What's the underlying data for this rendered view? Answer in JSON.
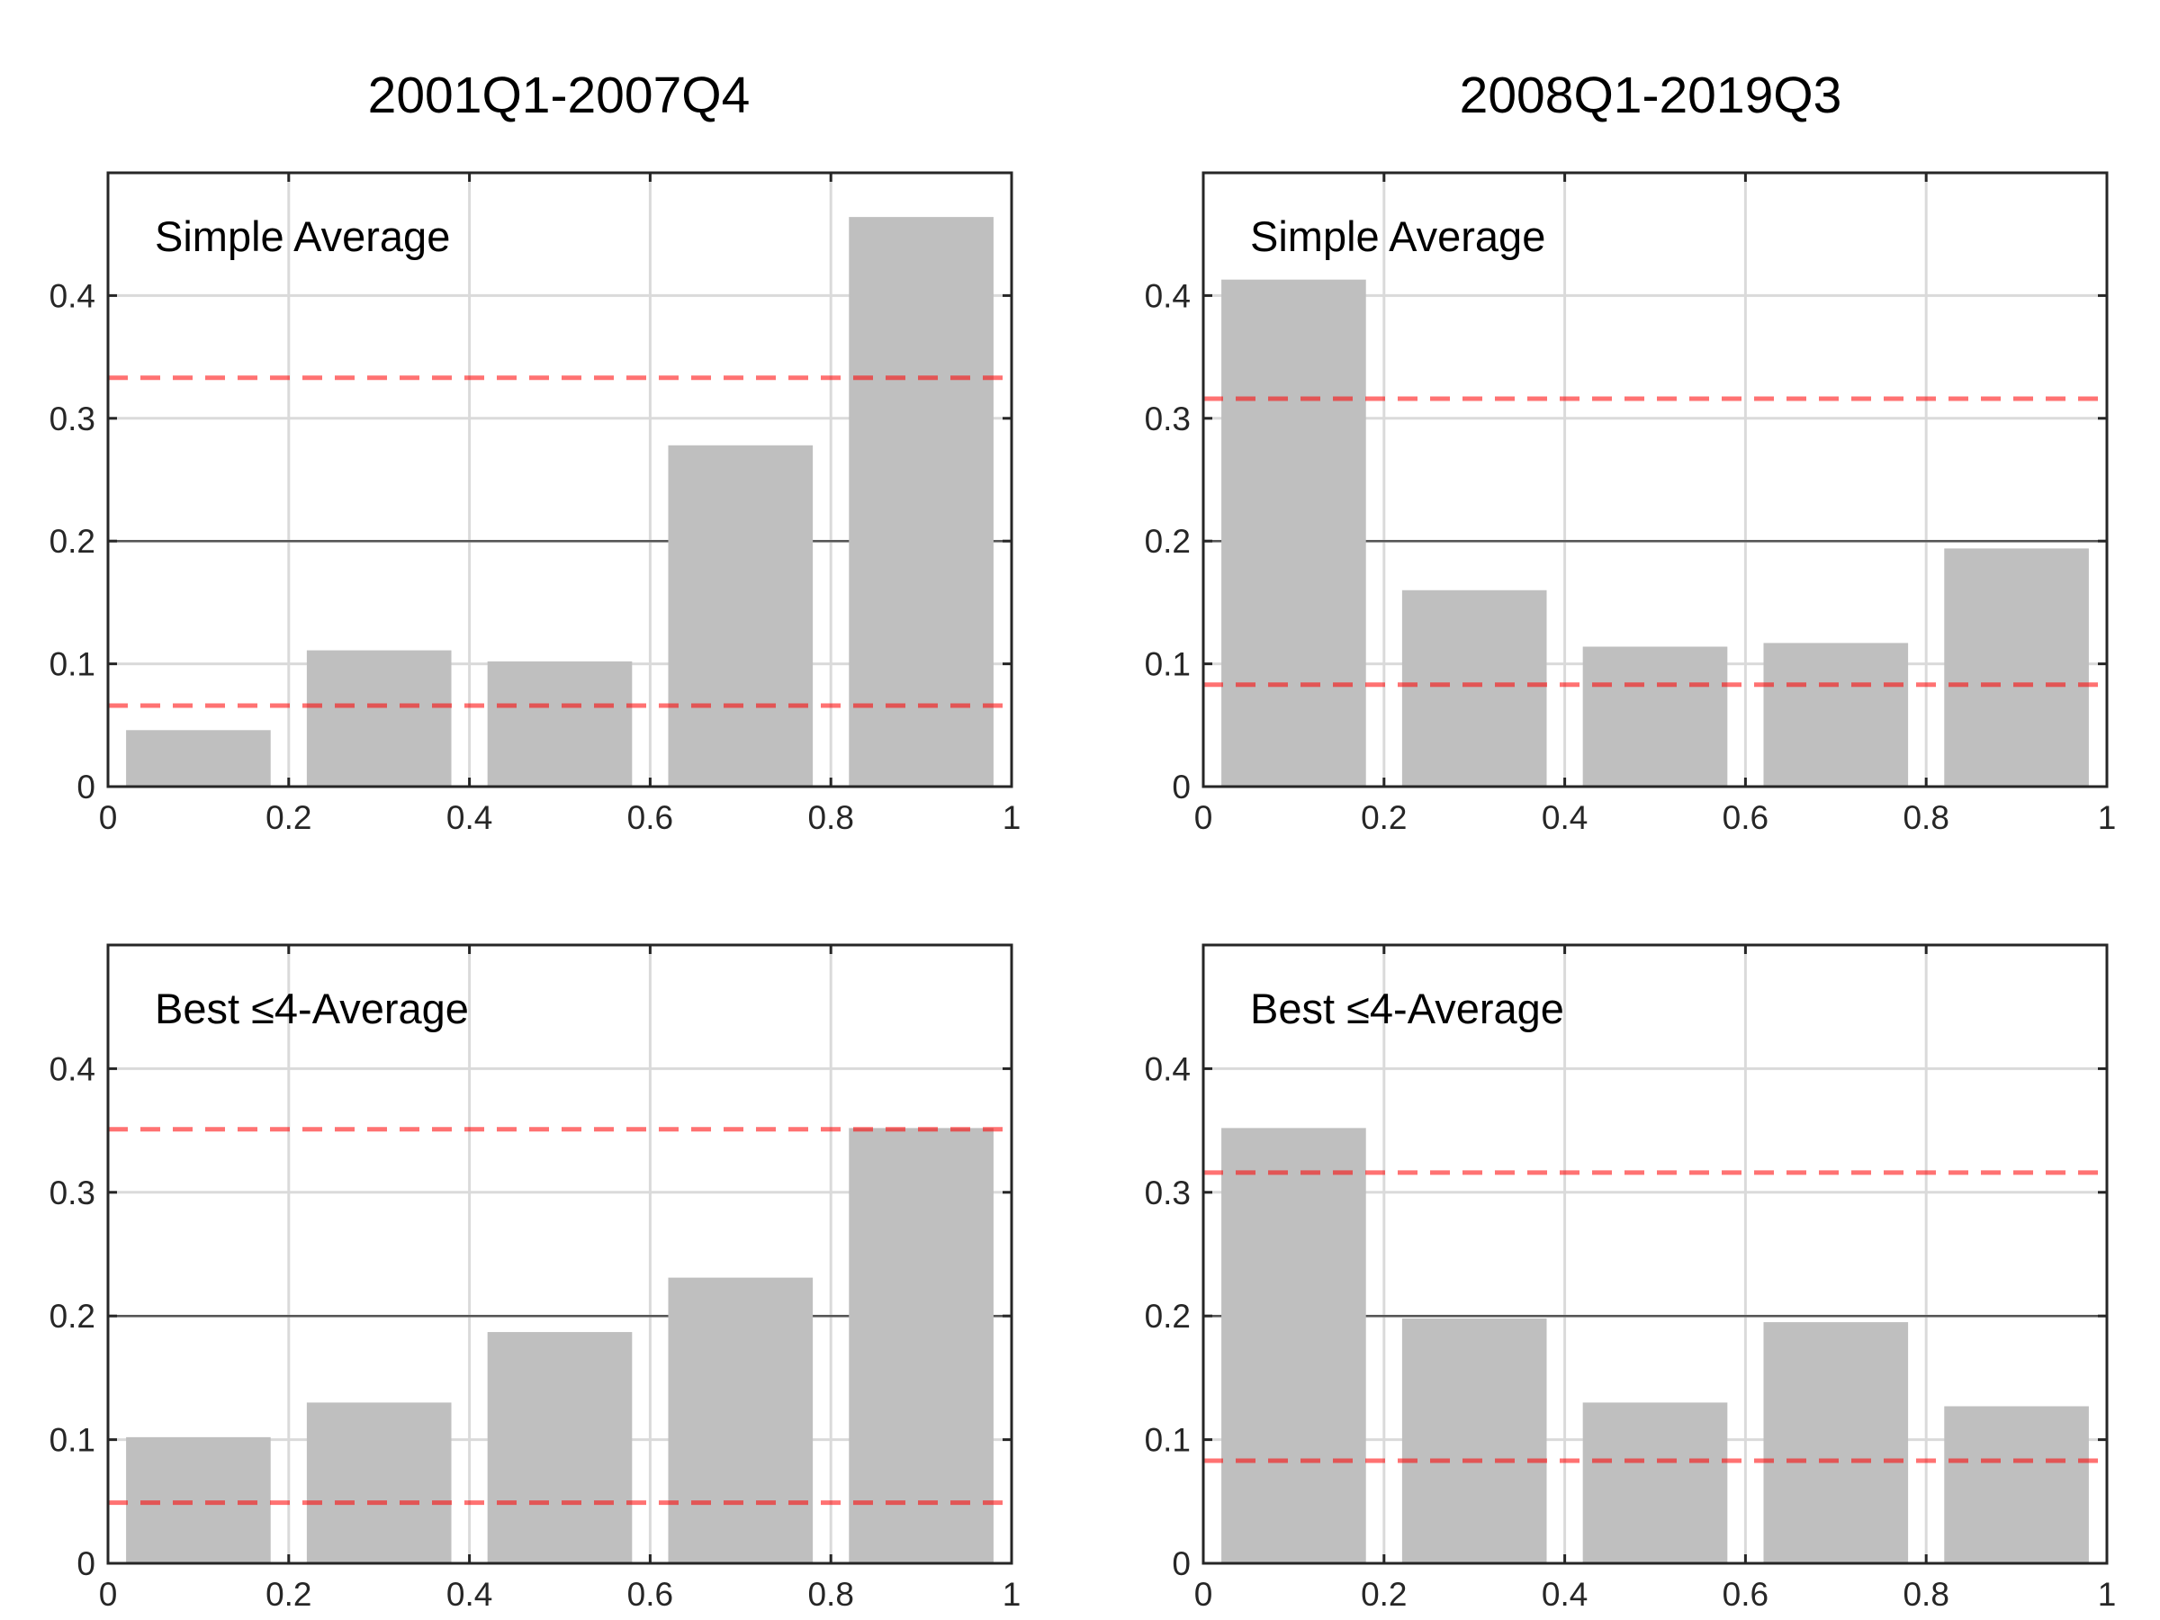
{
  "colors": {
    "bar": "#bfbfbf",
    "band_line": "#ff0000",
    "reference_line": "#555555",
    "grid": "#dadada",
    "axes": "#262626"
  },
  "chart_data": [
    {
      "type": "bar",
      "title": "2001Q1-2007Q4",
      "label": "Simple Average",
      "x": [
        0.1,
        0.3,
        0.5,
        0.7,
        0.9
      ],
      "values": [
        0.046,
        0.111,
        0.102,
        0.278,
        0.464
      ],
      "bar_width": 0.16,
      "xlim": [
        0,
        1
      ],
      "ylim": [
        0,
        0.5
      ],
      "xticks": [
        0,
        0.2,
        0.4,
        0.6,
        0.8,
        1
      ],
      "xtick_labels": [
        "0",
        "0.2",
        "0.4",
        "0.6",
        "0.8",
        "1"
      ],
      "yticks": [
        0,
        0.1,
        0.2,
        0.3,
        0.4
      ],
      "ytick_labels": [
        "0",
        "0.1",
        "0.2",
        "0.3",
        "0.4"
      ],
      "reference_line": 0.2,
      "dashed_band": [
        0.066,
        0.333
      ],
      "grid": true,
      "xlabel": "",
      "ylabel": ""
    },
    {
      "type": "bar",
      "title": "2008Q1-2019Q3",
      "label": "Simple Average",
      "x": [
        0.1,
        0.3,
        0.5,
        0.7,
        0.9
      ],
      "values": [
        0.413,
        0.16,
        0.114,
        0.117,
        0.194
      ],
      "bar_width": 0.16,
      "xlim": [
        0,
        1
      ],
      "ylim": [
        0,
        0.5
      ],
      "xticks": [
        0,
        0.2,
        0.4,
        0.6,
        0.8,
        1
      ],
      "xtick_labels": [
        "0",
        "0.2",
        "0.4",
        "0.6",
        "0.8",
        "1"
      ],
      "yticks": [
        0,
        0.1,
        0.2,
        0.3,
        0.4
      ],
      "ytick_labels": [
        "0",
        "0.1",
        "0.2",
        "0.3",
        "0.4"
      ],
      "reference_line": 0.2,
      "dashed_band": [
        0.083,
        0.316
      ],
      "grid": true,
      "xlabel": "",
      "ylabel": ""
    },
    {
      "type": "bar",
      "title": "",
      "label": "Best ≤4-Average",
      "x": [
        0.1,
        0.3,
        0.5,
        0.7,
        0.9
      ],
      "values": [
        0.102,
        0.13,
        0.187,
        0.231,
        0.352
      ],
      "bar_width": 0.16,
      "xlim": [
        0,
        1
      ],
      "ylim": [
        0,
        0.5
      ],
      "xticks": [
        0,
        0.2,
        0.4,
        0.6,
        0.8,
        1
      ],
      "xtick_labels": [
        "0",
        "0.2",
        "0.4",
        "0.6",
        "0.8",
        "1"
      ],
      "yticks": [
        0,
        0.1,
        0.2,
        0.3,
        0.4
      ],
      "ytick_labels": [
        "0",
        "0.1",
        "0.2",
        "0.3",
        "0.4"
      ],
      "reference_line": 0.2,
      "dashed_band": [
        0.049,
        0.351
      ],
      "grid": true,
      "xlabel": "",
      "ylabel": ""
    },
    {
      "type": "bar",
      "title": "",
      "label": "Best ≤4-Average",
      "x": [
        0.1,
        0.3,
        0.5,
        0.7,
        0.9
      ],
      "values": [
        0.352,
        0.198,
        0.13,
        0.195,
        0.127
      ],
      "bar_width": 0.16,
      "xlim": [
        0,
        1
      ],
      "ylim": [
        0,
        0.5
      ],
      "xticks": [
        0,
        0.2,
        0.4,
        0.6,
        0.8,
        1
      ],
      "xtick_labels": [
        "0",
        "0.2",
        "0.4",
        "0.6",
        "0.8",
        "1"
      ],
      "yticks": [
        0,
        0.1,
        0.2,
        0.3,
        0.4
      ],
      "ytick_labels": [
        "0",
        "0.1",
        "0.2",
        "0.3",
        "0.4"
      ],
      "reference_line": 0.2,
      "dashed_band": [
        0.083,
        0.316
      ],
      "grid": true,
      "xlabel": "",
      "ylabel": ""
    }
  ]
}
